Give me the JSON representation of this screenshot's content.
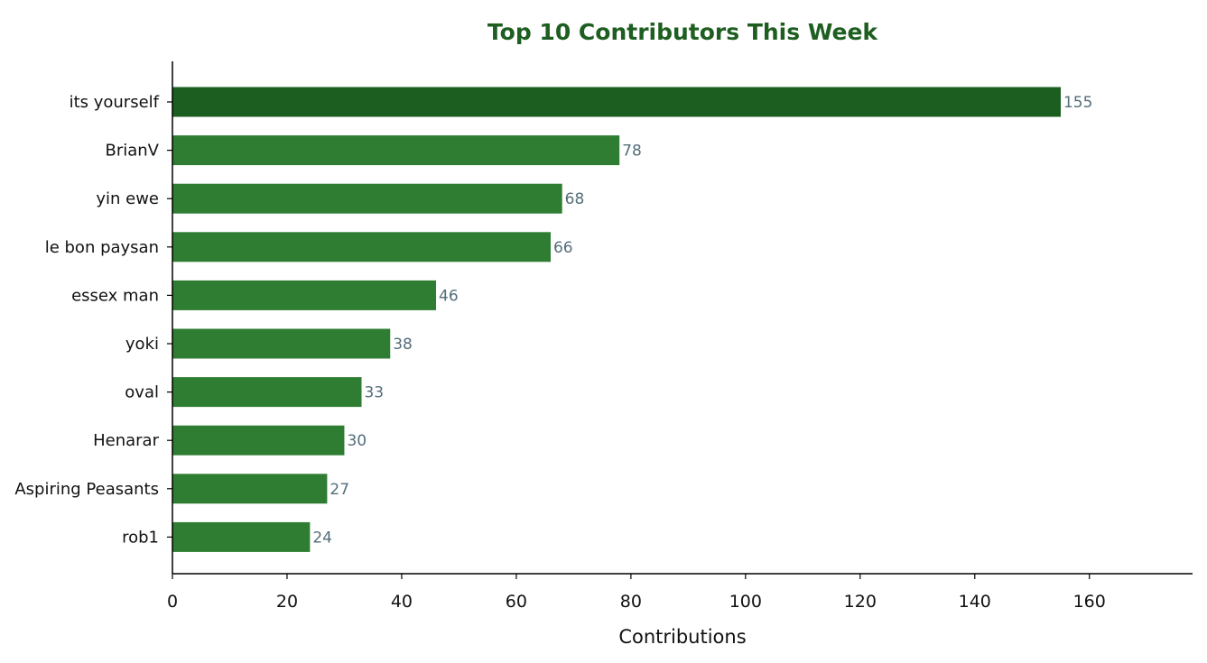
{
  "chart_data": {
    "type": "bar",
    "orientation": "horizontal",
    "title": "Top 10 Contributors This Week",
    "xlabel": "Contributions",
    "ylabel": "",
    "categories": [
      "its yourself",
      "BrianV",
      "yin ewe",
      "le bon paysan",
      "essex man",
      "yoki",
      "oval",
      "Henarar",
      "Aspiring Peasants",
      "rob1"
    ],
    "values": [
      155,
      78,
      68,
      66,
      46,
      38,
      33,
      30,
      27,
      24
    ],
    "xlim": [
      0,
      178
    ],
    "xticks": [
      0,
      20,
      40,
      60,
      80,
      100,
      120,
      140,
      160
    ],
    "grid": false,
    "legend": "none",
    "value_labels": true
  },
  "colors": {
    "title": "#1e5e20",
    "bar": "#2e7d32",
    "bar_highlight": "#1b5e20",
    "value_label": "#546e7a",
    "axis": "#000000"
  }
}
